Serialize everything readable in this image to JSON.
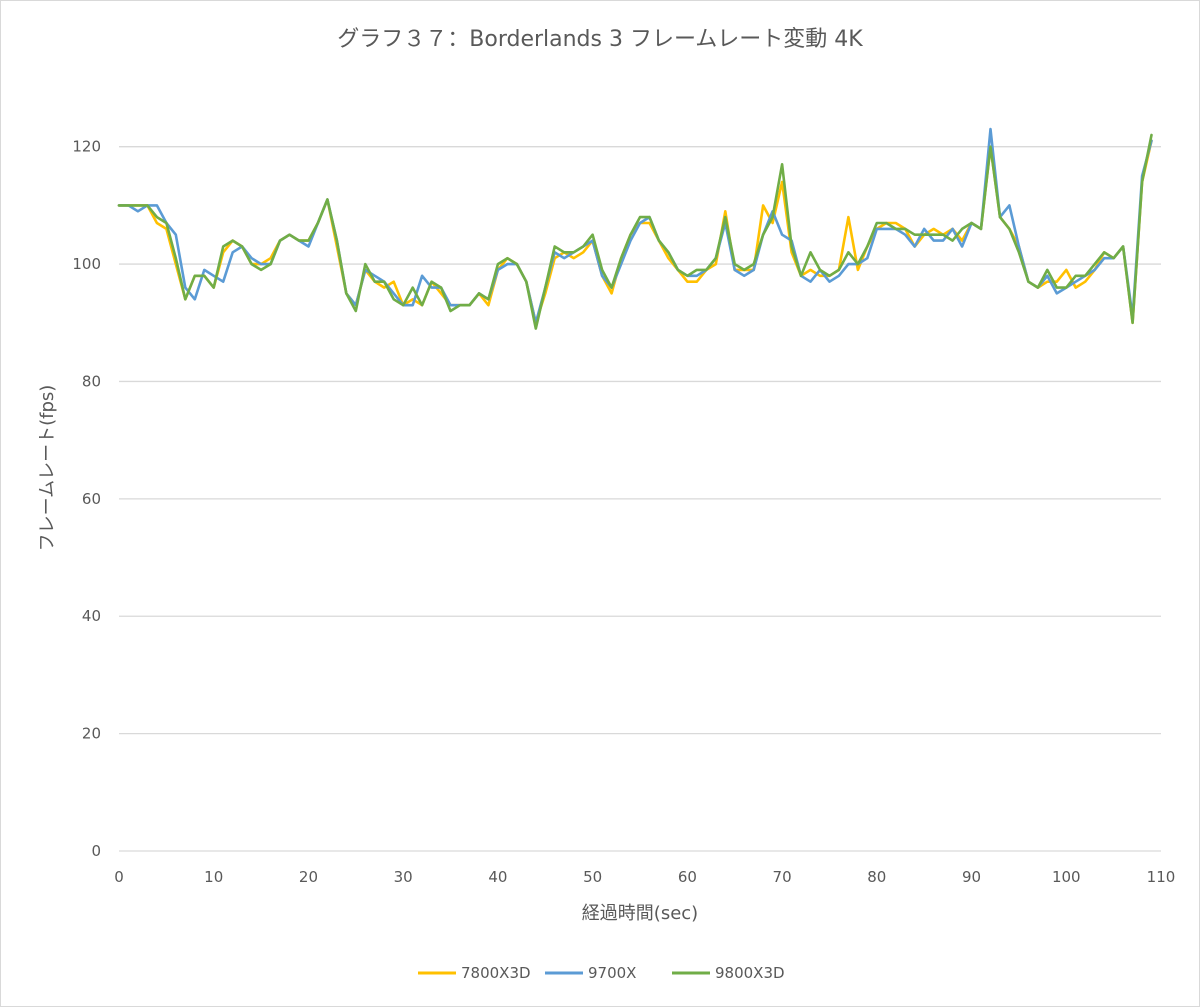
{
  "chart_data": {
    "type": "line",
    "title": "グラフ３７：Borderlands 3 フレームレート変動 4K",
    "xlabel": "経過時間(sec)",
    "ylabel": "フレームレート(fps)",
    "xlim": [
      0,
      110
    ],
    "ylim": [
      0,
      130
    ],
    "xticks": [
      0,
      10,
      20,
      30,
      40,
      50,
      60,
      70,
      80,
      90,
      100,
      110
    ],
    "yticks": [
      0,
      20,
      40,
      60,
      80,
      100,
      120
    ],
    "grid": "horizontal",
    "legend": "bottom",
    "colors": {
      "7800X3D": "#FFC000",
      "9700X": "#5B9BD5",
      "9800X3D": "#70AD47"
    },
    "series": [
      {
        "name": "7800X3D",
        "color": "#FFC000",
        "x": [
          0,
          1,
          2,
          3,
          4,
          5,
          6,
          7,
          8,
          9,
          10,
          11,
          12,
          13,
          14,
          15,
          16,
          17,
          18,
          19,
          20,
          21,
          22,
          23,
          24,
          25,
          26,
          27,
          28,
          29,
          30,
          31,
          32,
          33,
          34,
          35,
          36,
          37,
          38,
          39,
          40,
          41,
          42,
          43,
          44,
          45,
          46,
          47,
          48,
          49,
          50,
          51,
          52,
          53,
          54,
          55,
          56,
          57,
          58,
          59,
          60,
          61,
          62,
          63,
          64,
          65,
          66,
          67,
          68,
          69,
          70,
          71,
          72,
          73,
          74,
          75,
          76,
          77,
          78,
          79,
          80,
          81,
          82,
          83,
          84,
          85,
          86,
          87,
          88,
          89,
          90,
          91,
          92,
          93,
          94,
          95,
          96,
          97,
          98,
          99,
          100,
          101,
          102,
          103,
          104,
          105,
          106,
          107,
          108,
          109
        ],
        "values": [
          110,
          110,
          110,
          110,
          107,
          106,
          100,
          94,
          98,
          98,
          96,
          102,
          104,
          103,
          100,
          100,
          101,
          104,
          105,
          104,
          104,
          107,
          111,
          103,
          95,
          93,
          99,
          97,
          96,
          97,
          93,
          94,
          93,
          97,
          95,
          93,
          93,
          93,
          95,
          93,
          99,
          101,
          100,
          97,
          90,
          95,
          101,
          102,
          101,
          102,
          104,
          98,
          95,
          101,
          105,
          107,
          107,
          104,
          101,
          99,
          97,
          97,
          99,
          100,
          109,
          99,
          99,
          99,
          110,
          107,
          114,
          102,
          98,
          99,
          98,
          98,
          99,
          108,
          99,
          103,
          106,
          107,
          107,
          106,
          103,
          105,
          106,
          105,
          106,
          104,
          107,
          106,
          120,
          108,
          106,
          103,
          97,
          96,
          97,
          97,
          99,
          96,
          97,
          99,
          102,
          101,
          103,
          90,
          114,
          121
        ]
      },
      {
        "name": "9700X",
        "color": "#5B9BD5",
        "x": [
          0,
          1,
          2,
          3,
          4,
          5,
          6,
          7,
          8,
          9,
          10,
          11,
          12,
          13,
          14,
          15,
          16,
          17,
          18,
          19,
          20,
          21,
          22,
          23,
          24,
          25,
          26,
          27,
          28,
          29,
          30,
          31,
          32,
          33,
          34,
          35,
          36,
          37,
          38,
          39,
          40,
          41,
          42,
          43,
          44,
          45,
          46,
          47,
          48,
          49,
          50,
          51,
          52,
          53,
          54,
          55,
          56,
          57,
          58,
          59,
          60,
          61,
          62,
          63,
          64,
          65,
          66,
          67,
          68,
          69,
          70,
          71,
          72,
          73,
          74,
          75,
          76,
          77,
          78,
          79,
          80,
          81,
          82,
          83,
          84,
          85,
          86,
          87,
          88,
          89,
          90,
          91,
          92,
          93,
          94,
          95,
          96,
          97,
          98,
          99,
          100,
          101,
          102,
          103,
          104,
          105,
          106,
          107,
          108,
          109
        ],
        "values": [
          110,
          110,
          109,
          110,
          110,
          107,
          105,
          96,
          94,
          99,
          98,
          97,
          102,
          103,
          101,
          100,
          100,
          104,
          105,
          104,
          103,
          107,
          111,
          104,
          95,
          93,
          99,
          98,
          97,
          95,
          93,
          93,
          98,
          96,
          96,
          93,
          93,
          93,
          95,
          94,
          99,
          100,
          100,
          97,
          90,
          96,
          102,
          101,
          102,
          103,
          104,
          98,
          96,
          100,
          104,
          107,
          108,
          104,
          102,
          99,
          98,
          98,
          99,
          101,
          107,
          99,
          98,
          99,
          105,
          109,
          105,
          104,
          98,
          97,
          99,
          97,
          98,
          100,
          100,
          101,
          106,
          106,
          106,
          105,
          103,
          106,
          104,
          104,
          106,
          103,
          107,
          106,
          123,
          108,
          110,
          103,
          97,
          96,
          98,
          95,
          96,
          97,
          98,
          99,
          101,
          101,
          103,
          91,
          115,
          121
        ]
      },
      {
        "name": "9800X3D",
        "color": "#70AD47",
        "x": [
          0,
          1,
          2,
          3,
          4,
          5,
          6,
          7,
          8,
          9,
          10,
          11,
          12,
          13,
          14,
          15,
          16,
          17,
          18,
          19,
          20,
          21,
          22,
          23,
          24,
          25,
          26,
          27,
          28,
          29,
          30,
          31,
          32,
          33,
          34,
          35,
          36,
          37,
          38,
          39,
          40,
          41,
          42,
          43,
          44,
          45,
          46,
          47,
          48,
          49,
          50,
          51,
          52,
          53,
          54,
          55,
          56,
          57,
          58,
          59,
          60,
          61,
          62,
          63,
          64,
          65,
          66,
          67,
          68,
          69,
          70,
          71,
          72,
          73,
          74,
          75,
          76,
          77,
          78,
          79,
          80,
          81,
          82,
          83,
          84,
          85,
          86,
          87,
          88,
          89,
          90,
          91,
          92,
          93,
          94,
          95,
          96,
          97,
          98,
          99,
          100,
          101,
          102,
          103,
          104,
          105,
          106,
          107,
          108,
          109
        ],
        "values": [
          110,
          110,
          110,
          110,
          108,
          107,
          101,
          94,
          98,
          98,
          96,
          103,
          104,
          103,
          100,
          99,
          100,
          104,
          105,
          104,
          104,
          107,
          111,
          104,
          95,
          92,
          100,
          97,
          97,
          94,
          93,
          96,
          93,
          97,
          96,
          92,
          93,
          93,
          95,
          94,
          100,
          101,
          100,
          97,
          89,
          96,
          103,
          102,
          102,
          103,
          105,
          99,
          96,
          101,
          105,
          108,
          108,
          104,
          102,
          99,
          98,
          99,
          99,
          101,
          108,
          100,
          99,
          100,
          105,
          108,
          117,
          103,
          98,
          102,
          99,
          98,
          99,
          102,
          100,
          103,
          107,
          107,
          106,
          106,
          105,
          105,
          105,
          105,
          104,
          106,
          107,
          106,
          120,
          108,
          106,
          102,
          97,
          96,
          99,
          96,
          96,
          98,
          98,
          100,
          102,
          101,
          103,
          90,
          114,
          122
        ]
      }
    ]
  }
}
